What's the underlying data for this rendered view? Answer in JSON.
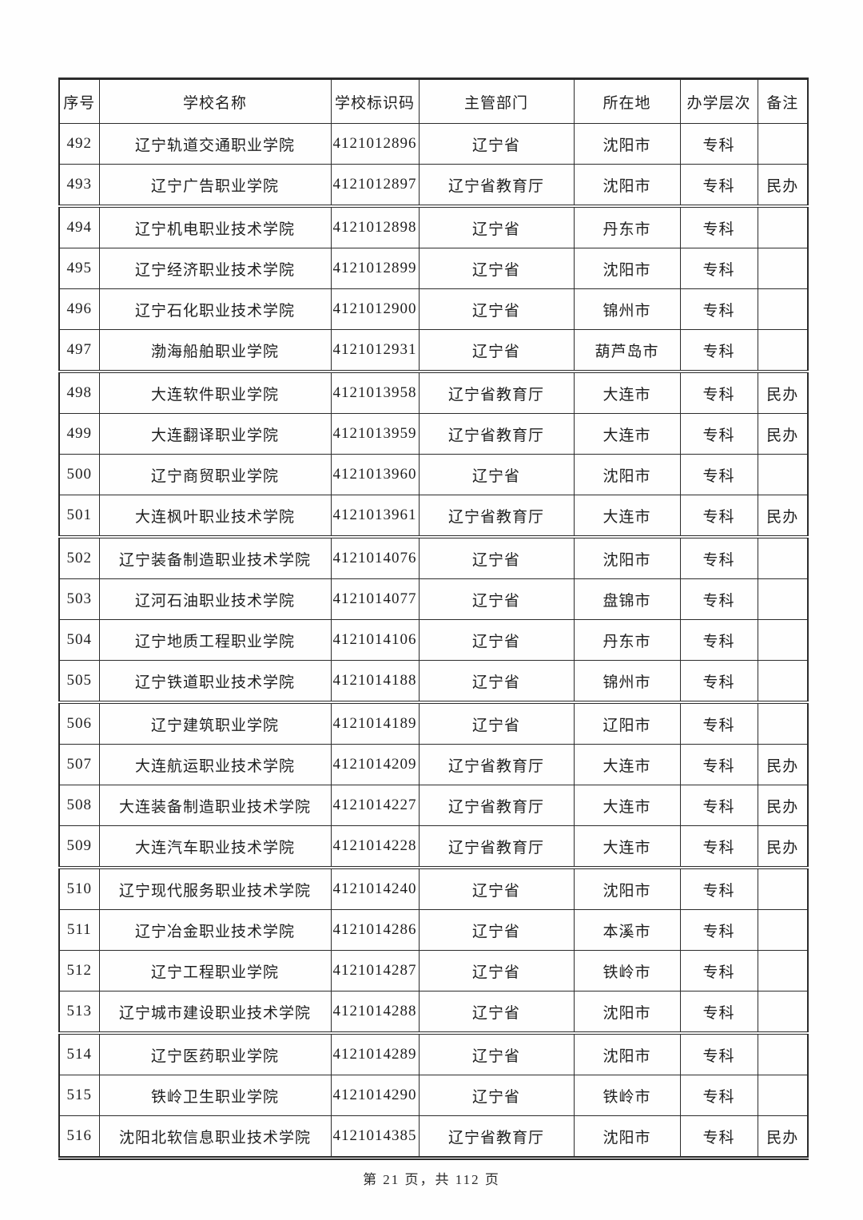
{
  "table": {
    "columns": [
      "序号",
      "学校名称",
      "学校标识码",
      "主管部门",
      "所在地",
      "办学层次",
      "备注"
    ],
    "rows": [
      [
        "492",
        "辽宁轨道交通职业学院",
        "4121012896",
        "辽宁省",
        "沈阳市",
        "专科",
        ""
      ],
      [
        "493",
        "辽宁广告职业学院",
        "4121012897",
        "辽宁省教育厅",
        "沈阳市",
        "专科",
        "民办"
      ],
      [
        "494",
        "辽宁机电职业技术学院",
        "4121012898",
        "辽宁省",
        "丹东市",
        "专科",
        ""
      ],
      [
        "495",
        "辽宁经济职业技术学院",
        "4121012899",
        "辽宁省",
        "沈阳市",
        "专科",
        ""
      ],
      [
        "496",
        "辽宁石化职业技术学院",
        "4121012900",
        "辽宁省",
        "锦州市",
        "专科",
        ""
      ],
      [
        "497",
        "渤海船舶职业学院",
        "4121012931",
        "辽宁省",
        "葫芦岛市",
        "专科",
        ""
      ],
      [
        "498",
        "大连软件职业学院",
        "4121013958",
        "辽宁省教育厅",
        "大连市",
        "专科",
        "民办"
      ],
      [
        "499",
        "大连翻译职业学院",
        "4121013959",
        "辽宁省教育厅",
        "大连市",
        "专科",
        "民办"
      ],
      [
        "500",
        "辽宁商贸职业学院",
        "4121013960",
        "辽宁省",
        "沈阳市",
        "专科",
        ""
      ],
      [
        "501",
        "大连枫叶职业技术学院",
        "4121013961",
        "辽宁省教育厅",
        "大连市",
        "专科",
        "民办"
      ],
      [
        "502",
        "辽宁装备制造职业技术学院",
        "4121014076",
        "辽宁省",
        "沈阳市",
        "专科",
        ""
      ],
      [
        "503",
        "辽河石油职业技术学院",
        "4121014077",
        "辽宁省",
        "盘锦市",
        "专科",
        ""
      ],
      [
        "504",
        "辽宁地质工程职业学院",
        "4121014106",
        "辽宁省",
        "丹东市",
        "专科",
        ""
      ],
      [
        "505",
        "辽宁铁道职业技术学院",
        "4121014188",
        "辽宁省",
        "锦州市",
        "专科",
        ""
      ],
      [
        "506",
        "辽宁建筑职业学院",
        "4121014189",
        "辽宁省",
        "辽阳市",
        "专科",
        ""
      ],
      [
        "507",
        "大连航运职业技术学院",
        "4121014209",
        "辽宁省教育厅",
        "大连市",
        "专科",
        "民办"
      ],
      [
        "508",
        "大连装备制造职业技术学院",
        "4121014227",
        "辽宁省教育厅",
        "大连市",
        "专科",
        "民办"
      ],
      [
        "509",
        "大连汽车职业技术学院",
        "4121014228",
        "辽宁省教育厅",
        "大连市",
        "专科",
        "民办"
      ],
      [
        "510",
        "辽宁现代服务职业技术学院",
        "4121014240",
        "辽宁省",
        "沈阳市",
        "专科",
        ""
      ],
      [
        "511",
        "辽宁冶金职业技术学院",
        "4121014286",
        "辽宁省",
        "本溪市",
        "专科",
        ""
      ],
      [
        "512",
        "辽宁工程职业学院",
        "4121014287",
        "辽宁省",
        "铁岭市",
        "专科",
        ""
      ],
      [
        "513",
        "辽宁城市建设职业技术学院",
        "4121014288",
        "辽宁省",
        "沈阳市",
        "专科",
        ""
      ],
      [
        "514",
        "辽宁医药职业学院",
        "4121014289",
        "辽宁省",
        "沈阳市",
        "专科",
        ""
      ],
      [
        "515",
        "铁岭卫生职业学院",
        "4121014290",
        "辽宁省",
        "铁岭市",
        "专科",
        ""
      ],
      [
        "516",
        "沈阳北软信息职业技术学院",
        "4121014385",
        "辽宁省教育厅",
        "沈阳市",
        "专科",
        "民办"
      ]
    ]
  },
  "page": {
    "footer": "第 21 页，共 112 页"
  }
}
